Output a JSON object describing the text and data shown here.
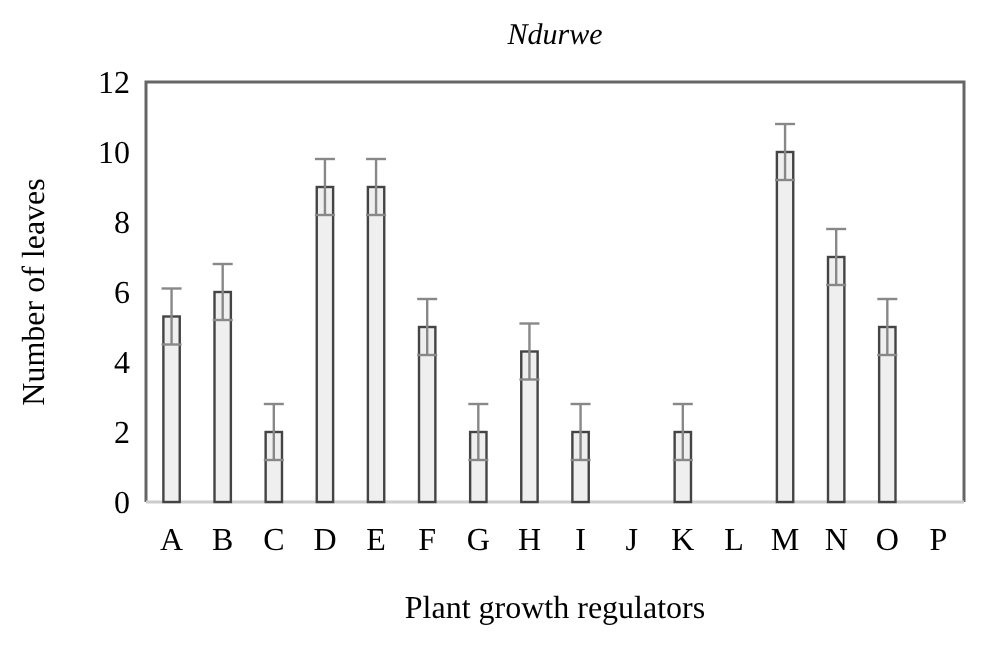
{
  "chart_data": {
    "type": "bar",
    "title": "Ndurwe",
    "xlabel": "Plant growth regulators",
    "ylabel": "Number of leaves",
    "categories": [
      "A",
      "B",
      "C",
      "D",
      "E",
      "F",
      "G",
      "H",
      "I",
      "J",
      "K",
      "L",
      "M",
      "N",
      "O",
      "P"
    ],
    "values": [
      5.3,
      6,
      2,
      9,
      9,
      5,
      2,
      4.3,
      2,
      0,
      2,
      0,
      10,
      7,
      5,
      0
    ],
    "errors": [
      0.8,
      0.8,
      0.8,
      0.8,
      0.8,
      0.8,
      0.8,
      0.8,
      0.8,
      null,
      0.8,
      null,
      0.8,
      0.8,
      0.8,
      null
    ],
    "color": "#efefef",
    "ylim": [
      0,
      12
    ],
    "yticks": [
      0,
      2,
      4,
      6,
      8,
      10,
      12
    ],
    "grid": false
  }
}
